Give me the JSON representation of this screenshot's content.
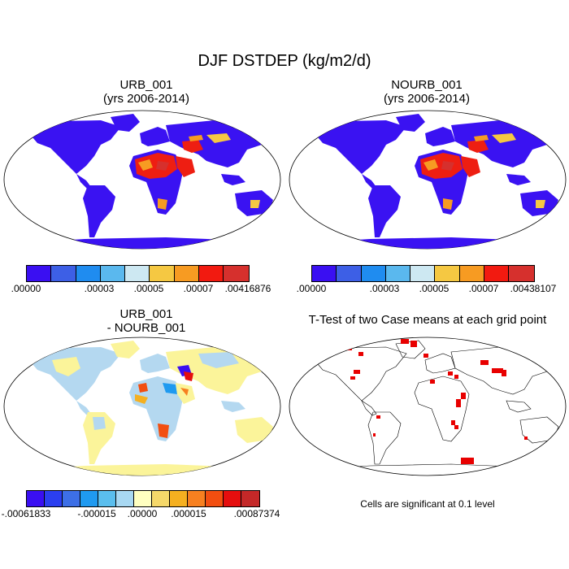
{
  "title": "DJF DSTDEP (kg/m2/d)",
  "panels": [
    {
      "line1": "URB_001",
      "line2": "(yrs 2006-2014)"
    },
    {
      "line1": "NOURB_001",
      "line2": "(yrs 2006-2014)"
    },
    {
      "line1": "URB_001",
      "line2": "- NOURB_001"
    },
    {
      "line1": "T-Test of two Case means at each grid point",
      "line2": ""
    }
  ],
  "colorbars": {
    "top": {
      "colors": [
        "#3a0ff2",
        "#3d5fe6",
        "#1f8cf0",
        "#5ab8ee",
        "#cde8f2",
        "#f5c842",
        "#f79b22",
        "#f21a10",
        "#d6302d"
      ]
    },
    "diff": {
      "colors": [
        "#3a0ff2",
        "#2b3ff0",
        "#3d6fe6",
        "#1f9af0",
        "#5abeee",
        "#a8d8f2",
        "#ffffc0",
        "#f5d86a",
        "#f5b020",
        "#f78020",
        "#f24e10",
        "#e50e0e",
        "#c42828"
      ],
      "labels": [
        "-.00061833",
        "-.000015",
        ".00000",
        ".000015",
        ".00087374"
      ]
    },
    "left_labels": [
      ".00000",
      ".00003",
      ".00005",
      ".00007",
      ".00416876"
    ],
    "right_labels": [
      ".00000",
      ".00003",
      ".00005",
      ".00007",
      ".00438107"
    ]
  },
  "significance_note": "Cells are significant at 0.1 level",
  "colors": {
    "ocean": "#ffffff",
    "low_land": "#3a12f2",
    "diff_pos": "#fbf49a",
    "diff_neg": "#b4d8f0",
    "significant": "#e80000",
    "coast": "#000000"
  }
}
